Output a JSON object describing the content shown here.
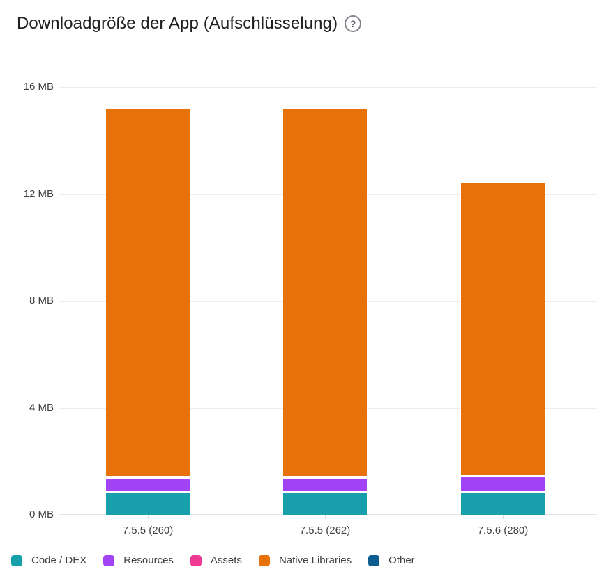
{
  "header": {
    "title": "Downloadgröße der App (Aufschlüsselung)",
    "help_icon": "?"
  },
  "chart_data": {
    "type": "bar",
    "stacked": true,
    "title": "Downloadgröße der App (Aufschlüsselung)",
    "categories": [
      "7.5.5 (260)",
      "7.5.5 (262)",
      "7.5.6 (280)"
    ],
    "series": [
      {
        "name": "Code / DEX",
        "color": "#17a0ac",
        "values": [
          0.8,
          0.8,
          0.8
        ]
      },
      {
        "name": "Resources",
        "color": "#a142f4",
        "values": [
          0.55,
          0.55,
          0.6
        ]
      },
      {
        "name": "Assets",
        "color": "#ef3a92",
        "values": [
          0,
          0,
          0
        ]
      },
      {
        "name": "Native Libraries",
        "color": "#e8710a",
        "values": [
          13.85,
          13.85,
          11.0
        ]
      },
      {
        "name": "Other",
        "color": "#0d5c8f",
        "values": [
          0,
          0,
          0
        ]
      }
    ],
    "totals_mb": [
      15.2,
      15.2,
      12.4
    ],
    "ylim": [
      0,
      16
    ],
    "yticks": [
      0,
      4,
      8,
      12,
      16
    ],
    "ytick_labels": [
      "0 MB",
      "4 MB",
      "8 MB",
      "12 MB",
      "16 MB"
    ],
    "xlabel": "",
    "ylabel": "",
    "grid": "horizontal",
    "legend_position": "bottom"
  }
}
